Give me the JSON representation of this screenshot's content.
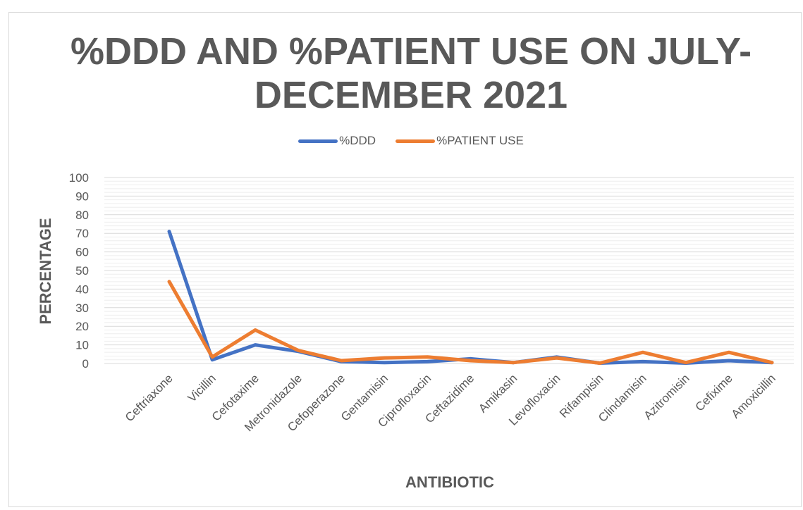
{
  "chart_data": {
    "type": "line",
    "title": "%DDD AND %PATIENT USE ON JULY-DECEMBER 2021",
    "xlabel": "ANTIBIOTIC",
    "ylabel": "PERCENTAGE",
    "ylim": [
      0,
      100
    ],
    "yticks": [
      "0",
      "10",
      "20",
      "30",
      "40",
      "50",
      "60",
      "70",
      "80",
      "90",
      "100"
    ],
    "grid": true,
    "legend_position": "top",
    "categories": [
      "Ceftriaxone",
      "Vicillin",
      "Cefotaxime",
      "Metronidazole",
      "Cefoperazone",
      "Gentamisin",
      "Ciprofloxacin",
      "Ceftazidime",
      "Amikasin",
      "Levofloxacin",
      "Rifampisin",
      "Clindamisin",
      "Azitromisin",
      "Cefixime",
      "Amoxicillin"
    ],
    "series": [
      {
        "name": "%DDD",
        "color": "#4472c4",
        "values": [
          71,
          2,
          10,
          6.5,
          1,
          0.5,
          1,
          2.5,
          0.5,
          3.5,
          0.2,
          1,
          0.2,
          1.5,
          0.5
        ]
      },
      {
        "name": "%PATIENT USE",
        "color": "#ed7d31",
        "values": [
          44,
          3.5,
          18,
          7,
          1.5,
          3,
          3.5,
          1.5,
          0.5,
          3,
          0.2,
          6,
          0.5,
          6,
          0.5
        ]
      }
    ]
  }
}
